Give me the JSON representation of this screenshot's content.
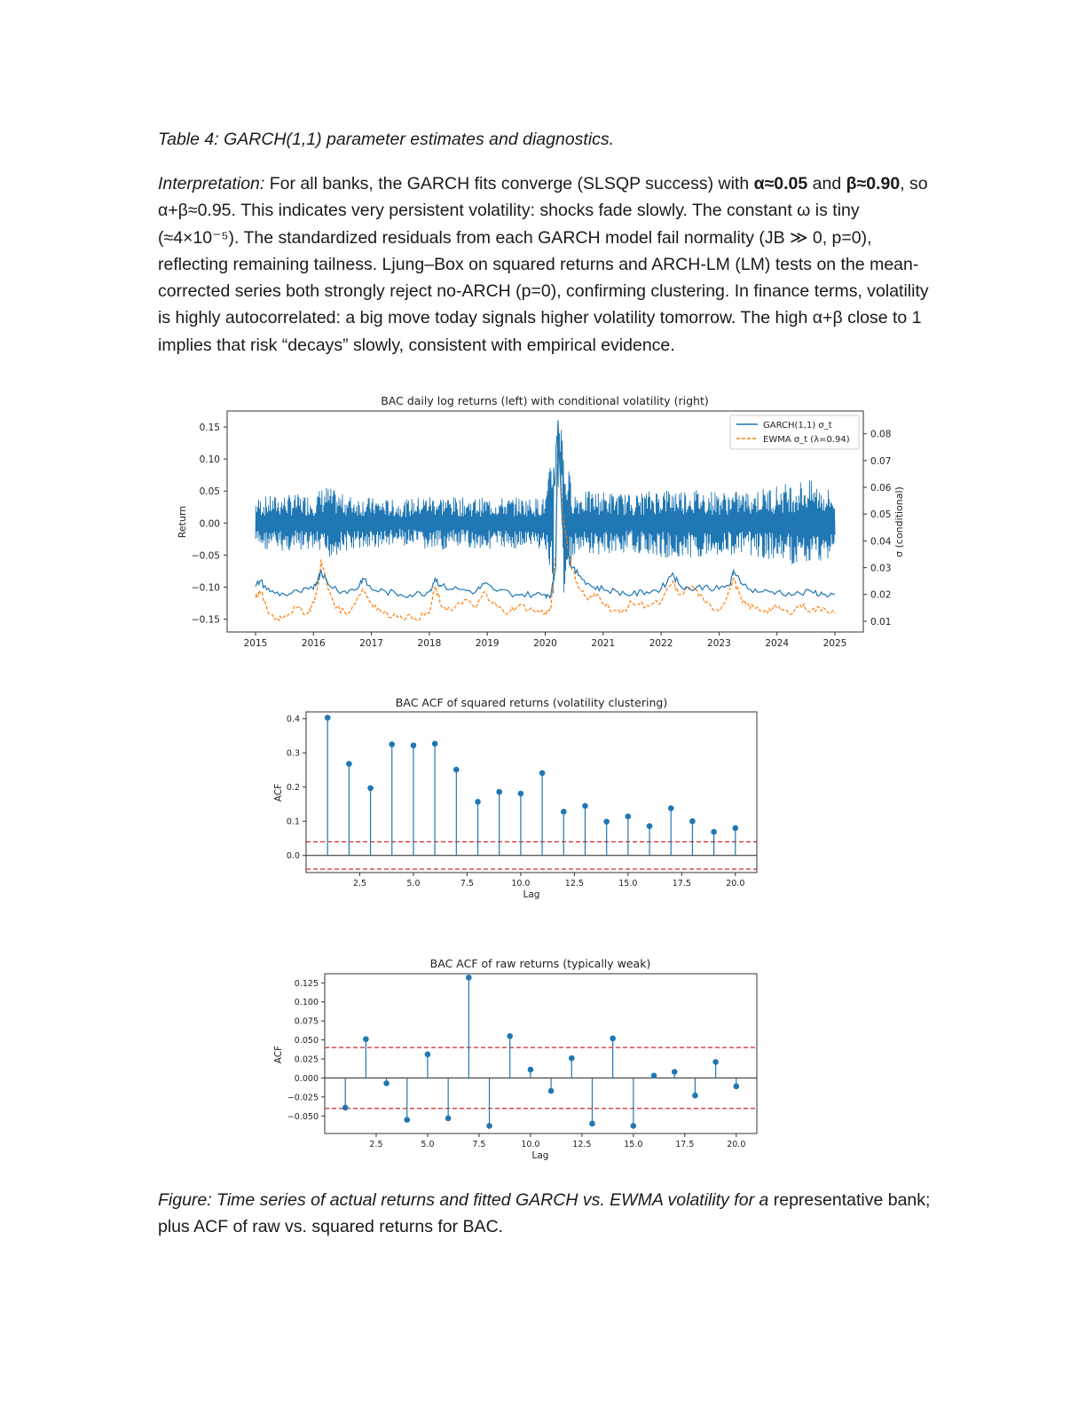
{
  "caption_top": "Table 4: GARCH(1,1) parameter estimates and diagnostics.",
  "interpretation": {
    "label": "Interpretation:",
    "t1": " For all banks, the GARCH fits converge (SLSQP success) with ",
    "b1": "α≈0.05",
    "t2": " and ",
    "b2": "β≈0.90",
    "t3": ", so α+β≈0.95. This indicates very persistent volatility: shocks fade slowly. The constant ω is tiny (≈4×10⁻⁵). The standardized residuals from each GARCH model fail normality (JB ≫ 0, p=0), reflecting remaining tailness. Ljung–Box on squared returns and ARCH-LM (LM) tests on the mean-corrected series both strongly reject no-ARCH (p=0), confirming clustering. In finance terms, volatility is highly autocorrelated: a big move today signals higher volatility tomorrow. The high α+β close to 1 implies that risk “decays” slowly, consistent with empirical evidence."
  },
  "figure_caption": {
    "italic": "Figure: Time series of actual returns and fitted GARCH vs. EWMA volatility for a",
    "rest": " representative bank; plus ACF of raw vs. squared returns for BAC."
  },
  "colors": {
    "blue": "#1f77b4",
    "orange": "#ff7f0e",
    "red": "#d62728"
  },
  "chart_data": [
    {
      "type": "line",
      "title": "BAC daily log returns (left) with conditional volatility (right)",
      "ylabel": "Return",
      "ylabel_right": "σ (conditional)",
      "xlim": [
        2015,
        2025
      ],
      "ylim": [
        -0.17,
        0.175
      ],
      "ylim_right": [
        0.006,
        0.0885
      ],
      "x_ticks": [
        "2015",
        "2016",
        "2017",
        "2018",
        "2019",
        "2020",
        "2021",
        "2022",
        "2023",
        "2024",
        "2025"
      ],
      "y_ticks": [
        "0.15",
        "0.10",
        "0.05",
        "0.00",
        "−0.05",
        "−0.10",
        "−0.15"
      ],
      "y_ticks_right": [
        "0.08",
        "0.07",
        "0.06",
        "0.05",
        "0.04",
        "0.03",
        "0.02",
        "0.01"
      ],
      "legend_position": "top-right",
      "series": [
        {
          "name": "GARCH(1,1) σ_t",
          "style": "solid",
          "axis": "right",
          "x": [
            2015.0,
            2015.08,
            2015.25,
            2015.5,
            2015.75,
            2016.0,
            2016.08,
            2016.13,
            2016.25,
            2016.5,
            2016.75,
            2016.85,
            2017.0,
            2017.25,
            2017.5,
            2017.75,
            2018.0,
            2018.1,
            2018.2,
            2018.5,
            2018.8,
            2018.95,
            2019.1,
            2019.5,
            2019.8,
            2020.0,
            2020.1,
            2020.18,
            2020.22,
            2020.3,
            2020.45,
            2020.6,
            2020.8,
            2021.0,
            2021.25,
            2021.5,
            2021.75,
            2022.0,
            2022.2,
            2022.3,
            2022.5,
            2022.75,
            2023.0,
            2023.2,
            2023.25,
            2023.5,
            2023.75,
            2024.0,
            2024.3,
            2024.6,
            2024.8,
            2025.0
          ],
          "y": [
            0.023,
            0.025,
            0.021,
            0.02,
            0.021,
            0.022,
            0.026,
            0.029,
            0.024,
            0.021,
            0.022,
            0.026,
            0.022,
            0.021,
            0.02,
            0.02,
            0.021,
            0.026,
            0.023,
            0.022,
            0.021,
            0.024,
            0.022,
            0.02,
            0.02,
            0.02,
            0.02,
            0.03,
            0.085,
            0.045,
            0.03,
            0.027,
            0.023,
            0.022,
            0.021,
            0.02,
            0.021,
            0.022,
            0.028,
            0.024,
            0.022,
            0.023,
            0.022,
            0.024,
            0.029,
            0.022,
            0.021,
            0.021,
            0.02,
            0.021,
            0.02,
            0.02
          ]
        },
        {
          "name": "EWMA σ_t (λ=0.94)",
          "style": "dashed",
          "axis": "right",
          "x": [
            2015.0,
            2015.1,
            2015.2,
            2015.35,
            2015.5,
            2015.7,
            2015.9,
            2016.0,
            2016.1,
            2016.13,
            2016.25,
            2016.4,
            2016.6,
            2016.85,
            2017.0,
            2017.2,
            2017.5,
            2017.75,
            2018.0,
            2018.1,
            2018.2,
            2018.4,
            2018.6,
            2018.8,
            2018.95,
            2019.1,
            2019.3,
            2019.55,
            2019.8,
            2020.0,
            2020.1,
            2020.18,
            2020.22,
            2020.3,
            2020.45,
            2020.6,
            2020.75,
            2020.9,
            2021.1,
            2021.3,
            2021.5,
            2021.75,
            2022.0,
            2022.2,
            2022.3,
            2022.55,
            2022.75,
            2023.0,
            2023.15,
            2023.25,
            2023.4,
            2023.6,
            2023.8,
            2024.0,
            2024.2,
            2024.4,
            2024.6,
            2024.8,
            2025.0
          ],
          "y": [
            0.019,
            0.021,
            0.014,
            0.011,
            0.012,
            0.015,
            0.013,
            0.017,
            0.025,
            0.033,
            0.022,
            0.015,
            0.013,
            0.022,
            0.017,
            0.013,
            0.012,
            0.011,
            0.013,
            0.023,
            0.016,
            0.014,
            0.018,
            0.015,
            0.021,
            0.017,
            0.013,
            0.016,
            0.014,
            0.013,
            0.015,
            0.035,
            0.083,
            0.05,
            0.03,
            0.022,
            0.018,
            0.02,
            0.015,
            0.013,
            0.017,
            0.016,
            0.017,
            0.025,
            0.02,
            0.023,
            0.017,
            0.014,
            0.02,
            0.026,
            0.017,
            0.015,
            0.014,
            0.015,
            0.013,
            0.016,
            0.014,
            0.015,
            0.013
          ]
        },
        {
          "name": "",
          "style": "solid",
          "axis": "left",
          "x": [
            2015.0,
            2015.5,
            2016.0,
            2016.2,
            2016.5,
            2017.0,
            2017.5,
            2018.0,
            2018.5,
            2019.0,
            2019.5,
            2020.0,
            2020.2,
            2020.5,
            2021.0,
            2021.5,
            2022.0,
            2022.5,
            2023.0,
            2023.5,
            2024.0,
            2024.5,
            2025.0
          ],
          "y_band": [
            0.04,
            0.045,
            0.045,
            0.06,
            0.045,
            0.04,
            0.035,
            0.045,
            0.04,
            0.04,
            0.04,
            0.04,
            0.16,
            0.05,
            0.05,
            0.045,
            0.055,
            0.055,
            0.05,
            0.05,
            0.06,
            0.07,
            0.05
          ]
        }
      ]
    },
    {
      "type": "stem",
      "title": "BAC ACF of squared returns (volatility clustering)",
      "xlabel": "Lag",
      "ylabel": "ACF",
      "xlim": [
        0,
        21
      ],
      "ylim": [
        -0.05,
        0.42
      ],
      "x_ticks": [
        "2.5",
        "5.0",
        "7.5",
        "10.0",
        "12.5",
        "15.0",
        "17.5",
        "20.0"
      ],
      "y_ticks": [
        "0.4",
        "0.3",
        "0.2",
        "0.1",
        "0.0"
      ],
      "confidence_band": 0.04,
      "x": [
        1,
        2,
        3,
        4,
        5,
        6,
        7,
        8,
        9,
        10,
        11,
        12,
        13,
        14,
        15,
        16,
        17,
        18,
        19,
        20
      ],
      "values": [
        0.403,
        0.268,
        0.197,
        0.325,
        0.322,
        0.327,
        0.251,
        0.157,
        0.186,
        0.181,
        0.241,
        0.128,
        0.145,
        0.099,
        0.114,
        0.086,
        0.138,
        0.1,
        0.069,
        0.08
      ]
    },
    {
      "type": "stem",
      "title": "BAC ACF of raw returns (typically weak)",
      "xlabel": "Lag",
      "ylabel": "ACF",
      "xlim": [
        0,
        21
      ],
      "ylim": [
        -0.073,
        0.137
      ],
      "x_ticks": [
        "2.5",
        "5.0",
        "7.5",
        "10.0",
        "12.5",
        "15.0",
        "17.5",
        "20.0"
      ],
      "y_ticks": [
        "0.125",
        "0.100",
        "0.075",
        "0.050",
        "0.025",
        "0.000",
        "−0.025",
        "−0.050"
      ],
      "confidence_band": 0.04,
      "x": [
        1,
        2,
        3,
        4,
        5,
        6,
        7,
        8,
        9,
        10,
        11,
        12,
        13,
        14,
        15,
        16,
        17,
        18,
        19,
        20
      ],
      "values": [
        -0.039,
        0.051,
        -0.007,
        -0.055,
        0.031,
        -0.053,
        0.132,
        -0.063,
        0.055,
        0.011,
        -0.017,
        0.026,
        -0.06,
        0.052,
        -0.063,
        0.003,
        0.008,
        -0.023,
        0.021,
        -0.011
      ]
    }
  ]
}
